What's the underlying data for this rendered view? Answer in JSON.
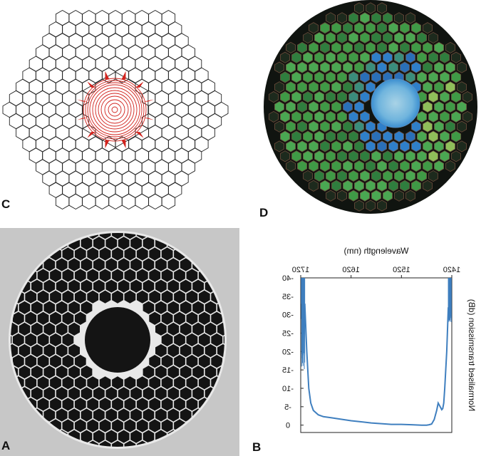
{
  "figure": {
    "panels": {
      "c": {
        "letter": "C"
      },
      "d": {
        "letter": "D"
      },
      "a": {
        "letter": "A"
      },
      "b": {
        "letter": "B"
      }
    },
    "colors": {
      "contour": "#d2221c",
      "curve": "#3f7fbf",
      "d_background": "#101410",
      "d_core": "#7ab8dc",
      "sem_background": "#c7c7c7",
      "sem_cells": "#141414"
    }
  },
  "chart_data": {
    "type": "line",
    "mirrored": true,
    "xlabel": "Wavelength (nm)",
    "ylabel": "Normalised transmission (dB)",
    "xlim": [
      1420,
      1720
    ],
    "ylim": [
      -40,
      2
    ],
    "x_ticks": [
      "1420",
      "1520",
      "1620",
      "1720"
    ],
    "y_ticks": [
      "-40",
      "-35",
      "-30",
      "-25",
      "-20",
      "-15",
      "-10",
      "-5",
      "0"
    ],
    "series": [
      {
        "x": [
          1427,
          1430,
          1434,
          1436,
          1438,
          1440,
          1443,
          1447,
          1450,
          1455,
          1460,
          1465,
          1470,
          1480,
          1500,
          1520,
          1540,
          1560,
          1580,
          1600,
          1620,
          1640,
          1660,
          1675,
          1685,
          1695,
          1700,
          1704,
          1708,
          1712
        ],
        "y": [
          -32,
          -20,
          -10,
          -6,
          -4.5,
          -4.2,
          -5,
          -6,
          -4,
          -1.5,
          -0.3,
          -0.1,
          0,
          0,
          -0.1,
          -0.2,
          -0.2,
          -0.4,
          -0.6,
          -0.9,
          -1.2,
          -1.6,
          -2,
          -2.3,
          -2.8,
          -4,
          -6,
          -10,
          -20,
          -33
        ]
      }
    ]
  }
}
